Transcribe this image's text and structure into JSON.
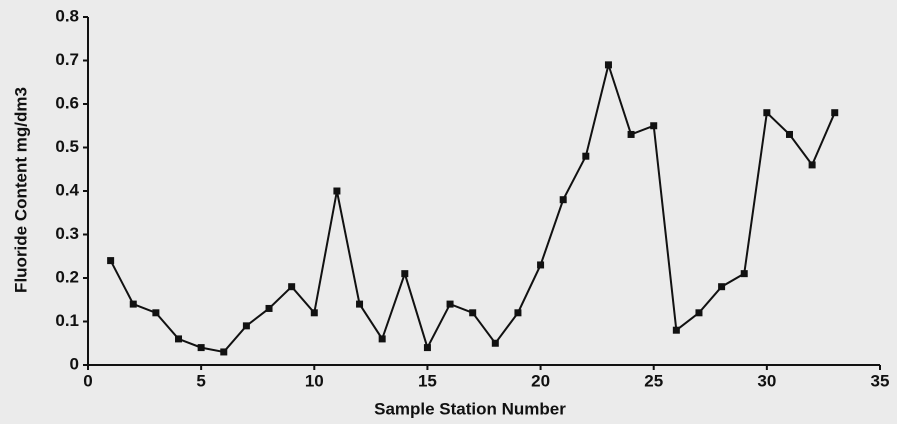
{
  "chart_data": {
    "type": "line",
    "xlabel": "Sample Station Number",
    "ylabel": "Fluoride Content mg/dm3",
    "x": [
      1,
      2,
      3,
      4,
      5,
      6,
      7,
      8,
      9,
      10,
      11,
      12,
      13,
      14,
      15,
      16,
      17,
      18,
      19,
      20,
      21,
      22,
      23,
      24,
      25,
      26,
      27,
      28,
      29,
      30,
      31,
      32,
      33
    ],
    "series": [
      {
        "name": "Fluoride",
        "color": "#111111",
        "values": [
          0.24,
          0.14,
          0.12,
          0.06,
          0.04,
          0.03,
          0.09,
          0.13,
          0.18,
          0.12,
          0.4,
          0.14,
          0.06,
          0.21,
          0.04,
          0.14,
          0.12,
          0.05,
          0.12,
          0.23,
          0.38,
          0.48,
          0.69,
          0.53,
          0.55,
          0.08,
          0.12,
          0.18,
          0.21,
          0.58,
          0.53,
          0.46,
          0.58
        ]
      }
    ],
    "xlim": [
      0,
      35
    ],
    "xticks": [
      0,
      5,
      10,
      15,
      20,
      25,
      30,
      35
    ],
    "ylim": [
      0,
      0.8
    ],
    "yticks": [
      0,
      0.1,
      0.2,
      0.3,
      0.4,
      0.5,
      0.6,
      0.7,
      0.8
    ]
  }
}
